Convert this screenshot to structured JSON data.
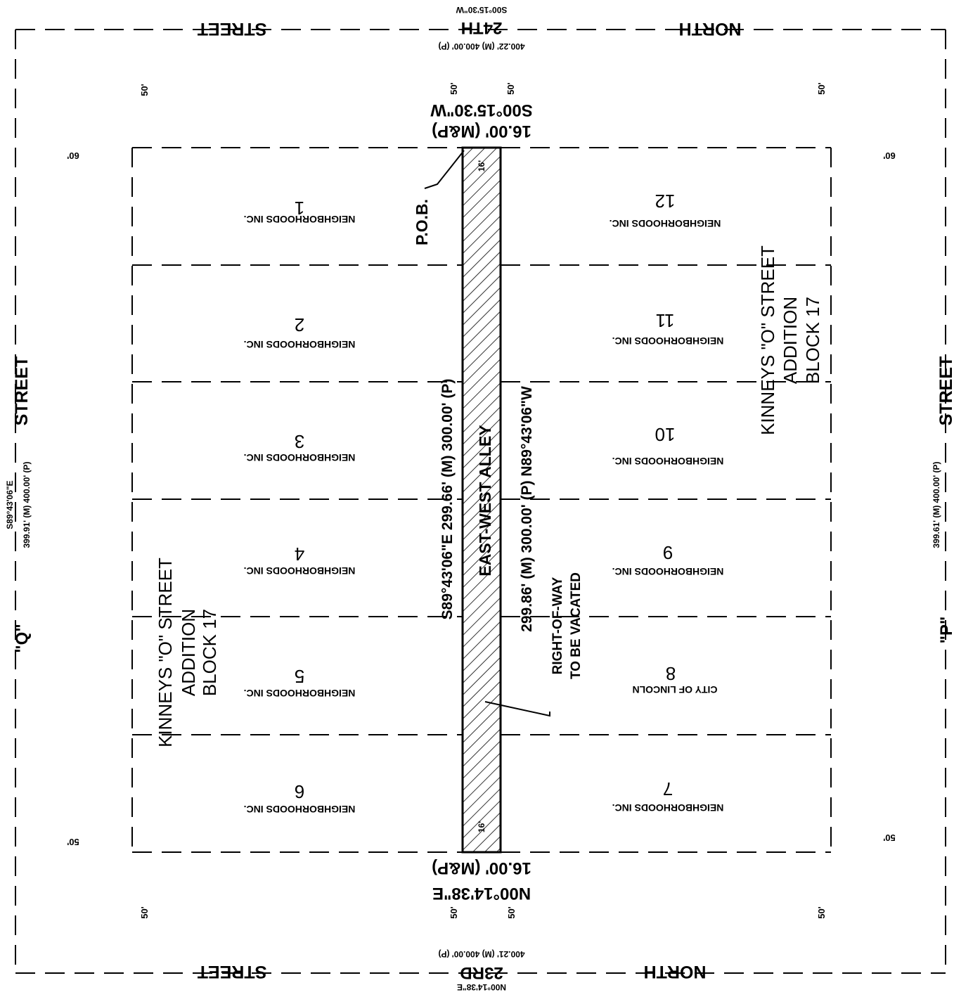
{
  "streets": {
    "top_north": "NORTH",
    "top_street": "STREET",
    "top_name": "24TH",
    "top_bearing": "S00°15'30\"W",
    "top_dist": "400.22' (M) 400.00' (P)",
    "bottom_north": "NORTH",
    "bottom_street": "STREET",
    "bottom_name": "23RD",
    "bottom_bearing": "N00°14'38\"E",
    "bottom_dist": "400.21' (M) 400.00' (P)",
    "left_name": "\"Q\"",
    "left_street": "STREET",
    "left_bearing": "S89°43'06\"E",
    "left_dist": "399.91' (M) 400.00' (P)",
    "right_name": "\"P\"",
    "right_street": "STREET",
    "right_dist": "399.61' (M) 400.00' (P)"
  },
  "row_widths": {
    "top_left": "50'",
    "top_alley_left": "50'",
    "top_alley_right": "50'",
    "top_right": "50'",
    "bottom_left": "50'",
    "bottom_alley_left": "50'",
    "bottom_alley_right": "50'",
    "bottom_right": "50'",
    "left_top": "60'",
    "left_bottom": "50'",
    "right_top": "60'",
    "right_bottom": "50'"
  },
  "alley": {
    "top_width": "16.00' (M&P)",
    "top_bearing": "S00°15'30\"W",
    "bottom_width": "16.00' (M&P)",
    "bottom_bearing": "N00°14'38\"E",
    "inner_top": "16'",
    "inner_bottom": "16'",
    "name": "EAST-WEST ALLEY",
    "west_line": "S89°43'06\"E   299.66' (M) 300.00' (P)",
    "east_line_a": "299.86' (M) 300.00' (P)   N89°43'06\"W",
    "pob": "P.O.B.",
    "row_vacated_1": "RIGHT-OF-WAY",
    "row_vacated_2": "TO BE VACATED"
  },
  "subdivision": {
    "line1": "KINNEYS \"O\" STREET",
    "line2": "ADDITION",
    "line3": "BLOCK 17"
  },
  "lots": [
    {
      "num": "1",
      "owner": "NEIGHBORHOODS INC."
    },
    {
      "num": "2",
      "owner": "NEIGHBORHOODS INC."
    },
    {
      "num": "3",
      "owner": "NEIGHBORHOODS INC."
    },
    {
      "num": "4",
      "owner": "NEIGHBORHOODS INC."
    },
    {
      "num": "5",
      "owner": "NEIGHBORHOODS INC."
    },
    {
      "num": "6",
      "owner": "NEIGHBORHOODS INC."
    },
    {
      "num": "7",
      "owner": "NEIGHBORHOODS INC."
    },
    {
      "num": "8",
      "owner": "CITY OF LINCOLN"
    },
    {
      "num": "9",
      "owner": "NEIGHBORHOODS INC."
    },
    {
      "num": "10",
      "owner": "NEIGHBORHOODS INC."
    },
    {
      "num": "11",
      "owner": "NEIGHBORHOODS INC."
    },
    {
      "num": "12",
      "owner": "NEIGHBORHOODS INC."
    }
  ]
}
